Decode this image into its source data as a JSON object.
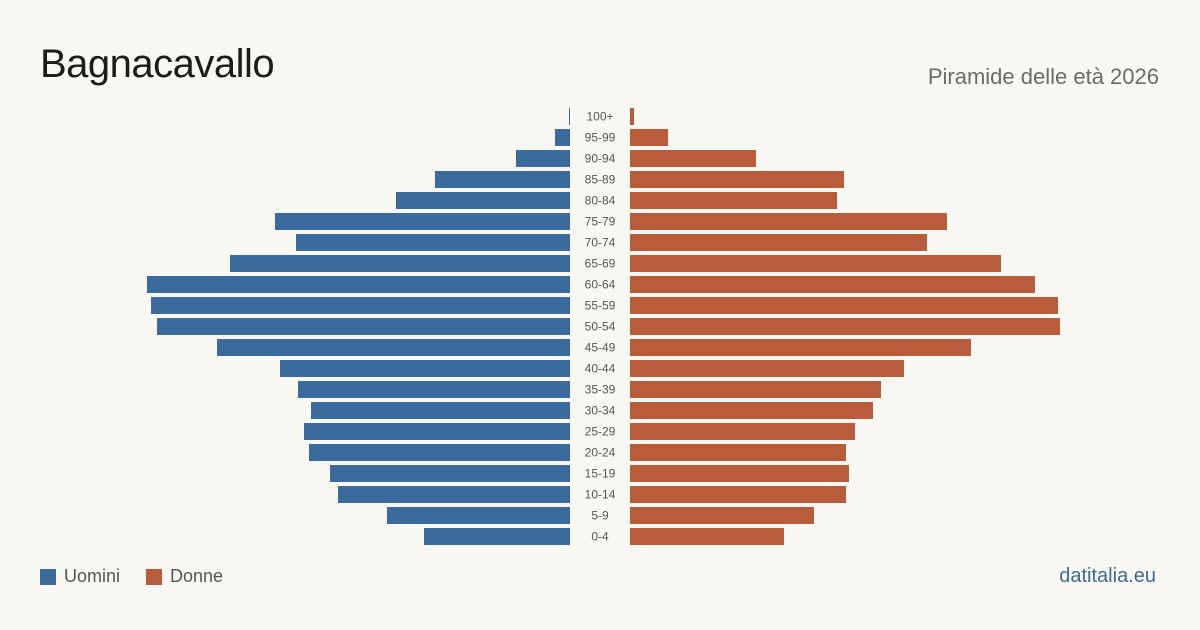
{
  "header": {
    "title": "Bagnacavallo",
    "subtitle": "Piramide delle età 2026"
  },
  "legend": {
    "men_label": "Uomini",
    "women_label": "Donne"
  },
  "footer": {
    "site": "datitalia.eu"
  },
  "colors": {
    "men": "#3b6a9c",
    "women": "#b85c3c",
    "background": "#f9f7f2"
  },
  "chart_data": {
    "type": "bar",
    "orientation": "horizontal-pyramid",
    "categories": [
      "100+",
      "95-99",
      "90-94",
      "85-89",
      "80-84",
      "75-79",
      "70-74",
      "65-69",
      "60-64",
      "55-59",
      "50-54",
      "45-49",
      "40-44",
      "35-39",
      "30-34",
      "25-29",
      "20-24",
      "15-19",
      "10-14",
      "5-9",
      "0-4"
    ],
    "series": [
      {
        "name": "Uomini",
        "values": [
          1,
          15,
          54,
          135,
          174,
          295,
          274,
          340,
          423,
          419,
          413,
          353,
          290,
          272,
          259,
          266,
          261,
          240,
          232,
          183,
          146
        ]
      },
      {
        "name": "Donne",
        "values": [
          4,
          38,
          126,
          214,
          207,
          317,
          297,
          371,
          405,
          428,
          430,
          341,
          274,
          251,
          243,
          225,
          216,
          219,
          216,
          184,
          154
        ]
      }
    ],
    "xlim": [
      0,
      430
    ],
    "grid": false,
    "legend_position": "bottom-left"
  }
}
